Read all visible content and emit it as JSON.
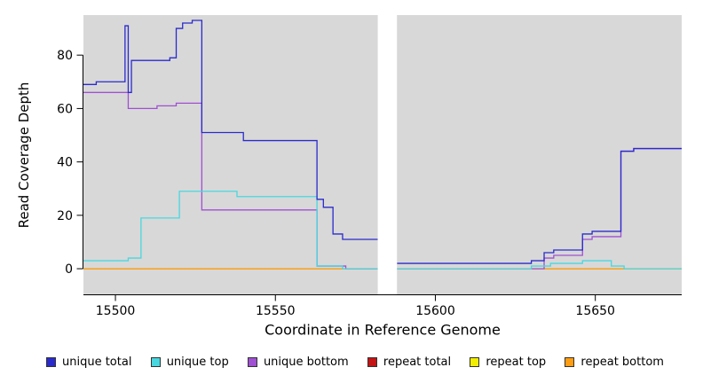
{
  "chart_data": {
    "type": "line",
    "style": "step",
    "title": "",
    "xlabel": "Coordinate in Reference Genome",
    "ylabel": "Read Coverage Depth",
    "xlim": [
      15490,
      15677
    ],
    "ylim": [
      -9.6,
      95
    ],
    "x_ticks": [
      "15500",
      "15550",
      "15600",
      "15650"
    ],
    "x_tick_values": [
      15500,
      15550,
      15600,
      15650
    ],
    "y_ticks": [
      "0",
      "20",
      "40",
      "60",
      "80"
    ],
    "y_tick_values": [
      0,
      20,
      40,
      60,
      80
    ],
    "grid": false,
    "panel_bg": "#d8d8d8",
    "masked_gap": {
      "x0": 15582,
      "x1": 15588
    },
    "legend_position": "bottom",
    "series": [
      {
        "name": "unique total",
        "color": "#2a2acc",
        "z": 6,
        "segments": [
          {
            "end": 15582,
            "points": [
              [
                15490,
                69
              ],
              [
                15494,
                70
              ],
              [
                15503,
                91
              ],
              [
                15504,
                66
              ],
              [
                15505,
                78
              ],
              [
                15517,
                79
              ],
              [
                15519,
                90
              ],
              [
                15521,
                92
              ],
              [
                15524,
                93
              ],
              [
                15527,
                51
              ],
              [
                15540,
                48
              ],
              [
                15563,
                26
              ],
              [
                15565,
                23
              ],
              [
                15568,
                13
              ],
              [
                15571,
                11
              ]
            ]
          },
          {
            "end": 15677,
            "points": [
              [
                15588,
                2
              ],
              [
                15630,
                3
              ],
              [
                15634,
                6
              ],
              [
                15637,
                7
              ],
              [
                15646,
                13
              ],
              [
                15649,
                14
              ],
              [
                15658,
                44
              ],
              [
                15662,
                45
              ]
            ]
          }
        ]
      },
      {
        "name": "unique top",
        "color": "#48d7df",
        "z": 5,
        "segments": [
          {
            "end": 15582,
            "points": [
              [
                15490,
                3
              ],
              [
                15504,
                4
              ],
              [
                15508,
                19
              ],
              [
                15520,
                29
              ],
              [
                15538,
                27
              ],
              [
                15563,
                1
              ],
              [
                15571,
                0
              ]
            ]
          },
          {
            "end": 15677,
            "points": [
              [
                15588,
                0
              ],
              [
                15630,
                1
              ],
              [
                15636,
                2
              ],
              [
                15646,
                3
              ],
              [
                15655,
                1
              ],
              [
                15659,
                0
              ]
            ]
          }
        ]
      },
      {
        "name": "unique bottom",
        "color": "#a050d2",
        "z": 4,
        "segments": [
          {
            "end": 15582,
            "points": [
              [
                15490,
                66
              ],
              [
                15504,
                60
              ],
              [
                15513,
                61
              ],
              [
                15519,
                62
              ],
              [
                15527,
                22
              ],
              [
                15563,
                1
              ],
              [
                15572,
                0
              ]
            ]
          },
          {
            "end": 15677,
            "points": [
              [
                15588,
                0
              ],
              [
                15634,
                4
              ],
              [
                15637,
                5
              ],
              [
                15646,
                11
              ],
              [
                15649,
                12
              ],
              [
                15658,
                44
              ],
              [
                15662,
                45
              ]
            ]
          }
        ]
      },
      {
        "name": "repeat total",
        "color": "#c41414",
        "z": 1,
        "segments": [
          {
            "end": 15582,
            "points": [
              [
                15490,
                0
              ]
            ]
          },
          {
            "end": 15677,
            "points": [
              [
                15588,
                0
              ]
            ]
          }
        ]
      },
      {
        "name": "repeat top",
        "color": "#f2ee00",
        "z": 2,
        "segments": [
          {
            "end": 15582,
            "points": [
              [
                15490,
                0
              ]
            ]
          },
          {
            "end": 15677,
            "points": [
              [
                15588,
                0
              ]
            ]
          }
        ]
      },
      {
        "name": "repeat bottom",
        "color": "#ff9d12",
        "z": 3,
        "segments": [
          {
            "end": 15582,
            "points": [
              [
                15490,
                0
              ]
            ]
          },
          {
            "end": 15677,
            "points": [
              [
                15588,
                0
              ]
            ]
          }
        ]
      }
    ]
  }
}
